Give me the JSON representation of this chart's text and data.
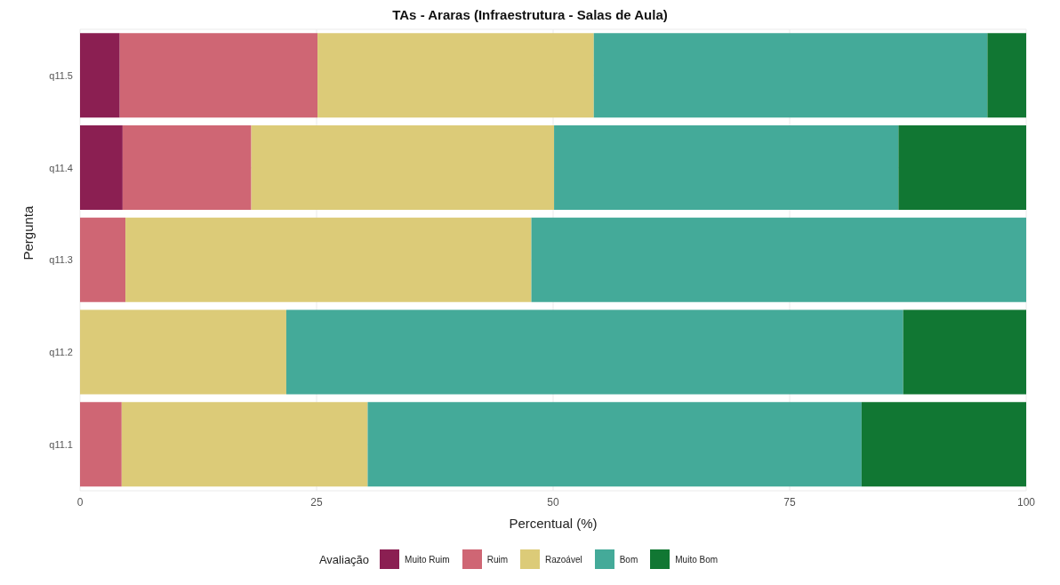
{
  "chart_data": {
    "type": "bar",
    "orientation": "horizontal",
    "stacked": true,
    "title": "TAs - Araras (Infraestrutura - Salas de Aula)",
    "xlabel": "Percentual (%)",
    "ylabel": "Pergunta",
    "legend_title": "Avaliação",
    "legend": "bottom",
    "grid": true,
    "categories": [
      "q11.5",
      "q11.4",
      "q11.3",
      "q11.2",
      "q11.1"
    ],
    "series": [
      {
        "name": "Muito Ruim",
        "color": "#8b1f52",
        "values": [
          4.2,
          4.5,
          0,
          0,
          0
        ]
      },
      {
        "name": "Ruim",
        "color": "#cf6674",
        "values": [
          20.9,
          13.6,
          4.8,
          0,
          4.4
        ]
      },
      {
        "name": "Razoável",
        "color": "#dccb78",
        "values": [
          29.2,
          32.0,
          42.9,
          21.8,
          26.0
        ]
      },
      {
        "name": "Bom",
        "color": "#44aa99",
        "values": [
          41.6,
          36.4,
          52.3,
          65.2,
          52.2
        ]
      },
      {
        "name": "Muito Bom",
        "color": "#117733",
        "values": [
          4.1,
          13.5,
          0,
          13.0,
          17.4
        ]
      }
    ],
    "xlim": [
      0,
      100
    ],
    "xticks": [
      0,
      25,
      50,
      75,
      100
    ]
  }
}
